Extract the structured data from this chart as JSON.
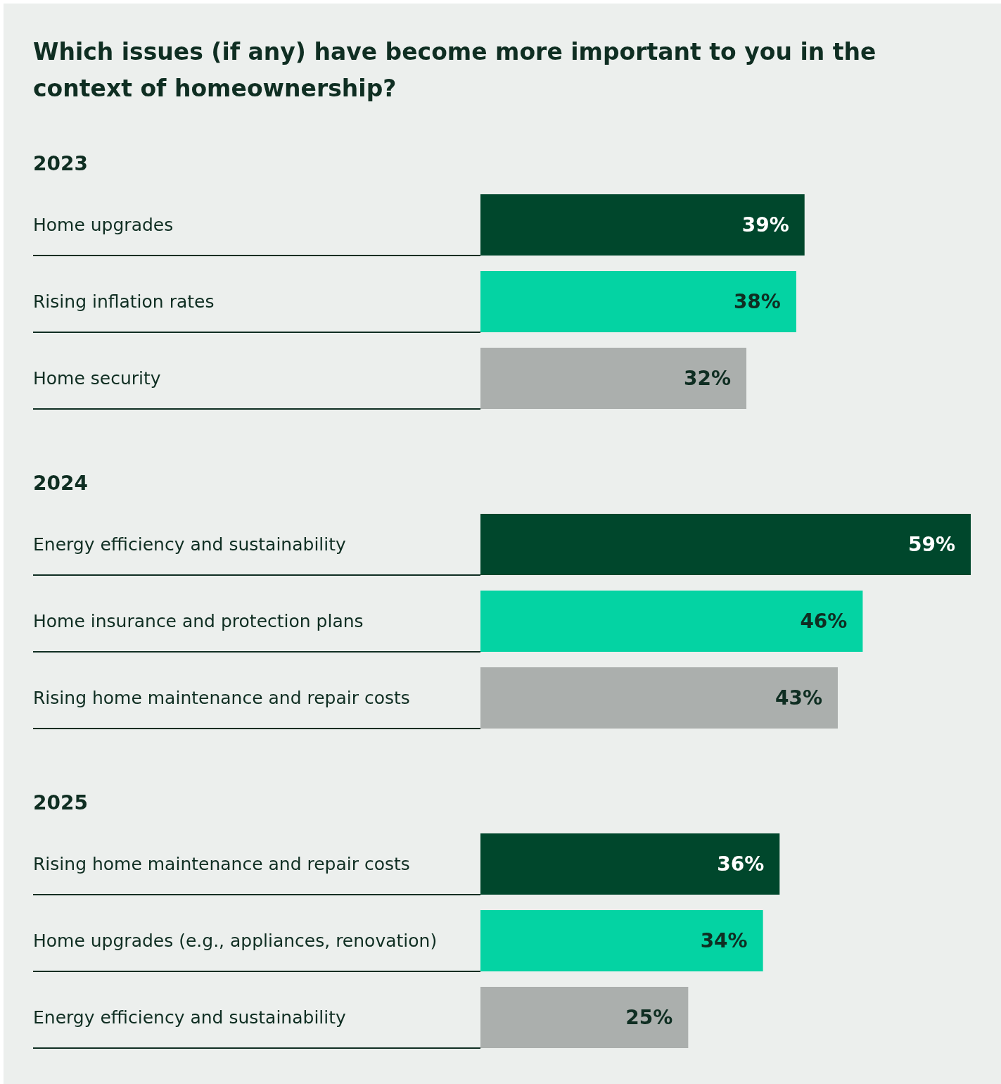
{
  "chart_data": [
    {
      "type": "bar",
      "orientation": "horizontal",
      "title": "Which issues (if any) have become more important to you in the context of homeownership?",
      "subtitle": "2023",
      "categories": [
        "Home upgrades",
        "Rising inflation rates",
        "Home security"
      ],
      "values": [
        39,
        38,
        32
      ],
      "colors": [
        "#00472c",
        "#04d3a3",
        "#abafad"
      ],
      "value_labels": [
        "39%",
        "38%",
        "32%"
      ]
    },
    {
      "type": "bar",
      "orientation": "horizontal",
      "subtitle": "2024",
      "categories": [
        "Energy efficiency and sustainability",
        "Home insurance and protection plans",
        "Rising home maintenance and repair costs"
      ],
      "values": [
        59,
        46,
        43
      ],
      "colors": [
        "#00472c",
        "#04d3a3",
        "#abafad"
      ],
      "value_labels": [
        "59%",
        "46%",
        "43%"
      ]
    },
    {
      "type": "bar",
      "orientation": "horizontal",
      "subtitle": "2025",
      "categories": [
        "Rising home maintenance and repair costs",
        "Home upgrades (e.g., appliances, renovation)",
        "Energy efficiency and sustainability"
      ],
      "values": [
        36,
        34,
        25
      ],
      "colors": [
        "#00472c",
        "#04d3a3",
        "#abafad"
      ],
      "value_labels": [
        "36%",
        "34%",
        "25%"
      ]
    }
  ]
}
